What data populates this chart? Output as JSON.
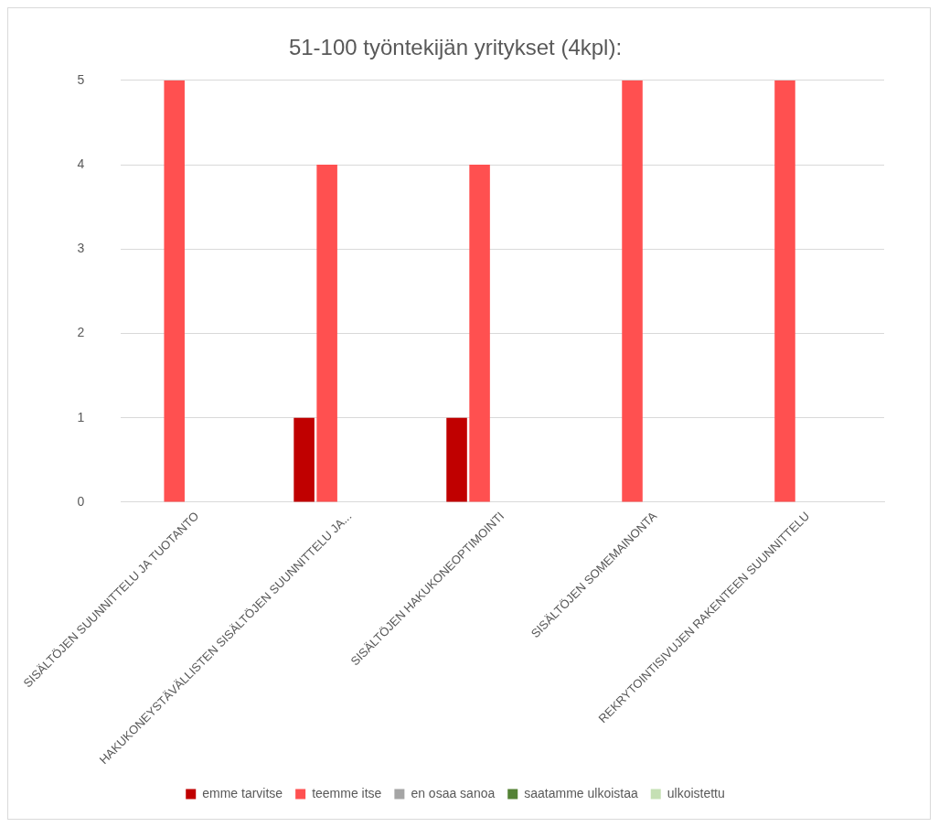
{
  "chart_data": {
    "type": "bar",
    "title": "51-100 työntekijän yritykset (4kpl):",
    "categories": [
      "SISÄLTÖJEN SUUNNITTELU JA TUOTANTO",
      "HAKUKONEYSTÄVÄLLISTEN SISÄLTÖJEN SUUNNITTELU JA...",
      "SISÄLTÖJEN HAKUKONEOPTIMOINTI",
      "SISÄLTÖJEN SOMEMAINONTA",
      "REKRYTOINTISIVUJEN RAKENTEEN SUUNNITTELU"
    ],
    "series": [
      {
        "name": "emme tarvitse",
        "color": "#c00000",
        "values": [
          0,
          1,
          1,
          0,
          0
        ]
      },
      {
        "name": "teemme itse",
        "color": "#ff5050",
        "values": [
          5,
          4,
          4,
          5,
          5
        ]
      },
      {
        "name": "en osaa sanoa",
        "color": "#a5a5a5",
        "values": [
          0,
          0,
          0,
          0,
          0
        ]
      },
      {
        "name": "saatamme ulkoistaa",
        "color": "#548235",
        "values": [
          0,
          0,
          0,
          0,
          0
        ]
      },
      {
        "name": "ulkoistettu",
        "color": "#c5e0b4",
        "values": [
          0,
          0,
          0,
          0,
          0
        ]
      }
    ],
    "ylim": [
      0,
      5
    ],
    "yticks": [
      0,
      1,
      2,
      3,
      4,
      5
    ],
    "grid": "y",
    "legend": "bottom"
  }
}
